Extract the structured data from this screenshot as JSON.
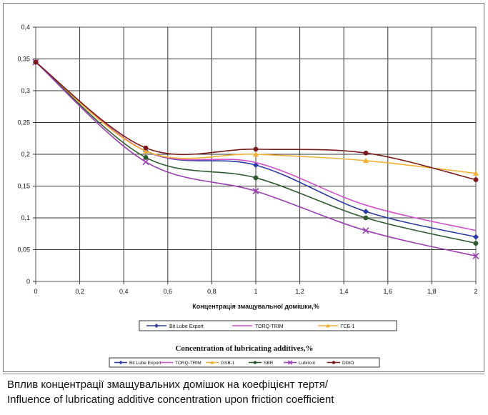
{
  "chart_data": {
    "type": "line",
    "xlabel": "Концентрація змащувальної домішки,%",
    "ylabel": "",
    "xlim": [
      0,
      2
    ],
    "ylim": [
      0,
      0.4
    ],
    "xticks": [
      "0",
      "0,2",
      "0,4",
      "0,6",
      "0,8",
      "1",
      "1,2",
      "1,4",
      "1,6",
      "1,8",
      "2"
    ],
    "yticks": [
      "0",
      "0,05",
      "0,1",
      "0,15",
      "0,2",
      "0,25",
      "0,3",
      "0,35",
      "0,4"
    ],
    "grid": true,
    "legend_top": [
      "Bit Lube Export",
      "TORQ-TRIM",
      "ГСБ-1"
    ],
    "legend_title": "Concentration of lubricating additives,%",
    "series": [
      {
        "name": "Bit Lube Export",
        "color": "#2a3aa6",
        "marker": "diamond",
        "x": [
          0,
          0.5,
          1,
          1.5,
          2
        ],
        "y": [
          0.345,
          0.205,
          0.183,
          0.11,
          0.07
        ]
      },
      {
        "name": "TORQ-TRIM",
        "color": "#d24fc8",
        "marker": "none",
        "x": [
          0,
          0.5,
          1,
          1.5,
          2
        ],
        "y": [
          0.345,
          0.205,
          0.187,
          0.12,
          0.08
        ]
      },
      {
        "name": "GSB-1",
        "color": "#f2b135",
        "marker": "triangle",
        "x": [
          0,
          0.5,
          1,
          1.5,
          2
        ],
        "y": [
          0.345,
          0.205,
          0.2,
          0.19,
          0.17
        ]
      },
      {
        "name": "SBR",
        "color": "#2d5a2d",
        "marker": "circle",
        "x": [
          0,
          0.5,
          1,
          1.5,
          2
        ],
        "y": [
          0.345,
          0.195,
          0.163,
          0.1,
          0.06
        ]
      },
      {
        "name": "Lubricol",
        "color": "#9a40b0",
        "marker": "cross",
        "x": [
          0,
          0.5,
          1,
          1.5,
          2
        ],
        "y": [
          0.345,
          0.188,
          0.142,
          0.08,
          0.04
        ]
      },
      {
        "name": "DDIO",
        "color": "#7a1a1a",
        "marker": "circle",
        "x": [
          0,
          0.5,
          1,
          1.5,
          2
        ],
        "y": [
          0.345,
          0.21,
          0.208,
          0.202,
          0.16
        ]
      }
    ]
  },
  "caption": {
    "line1": "Вплив концентрації змащувальних домішок на коефіцієнт тертя/",
    "line2": "Influence of lubricating additive concentration upon friction coefficient"
  }
}
